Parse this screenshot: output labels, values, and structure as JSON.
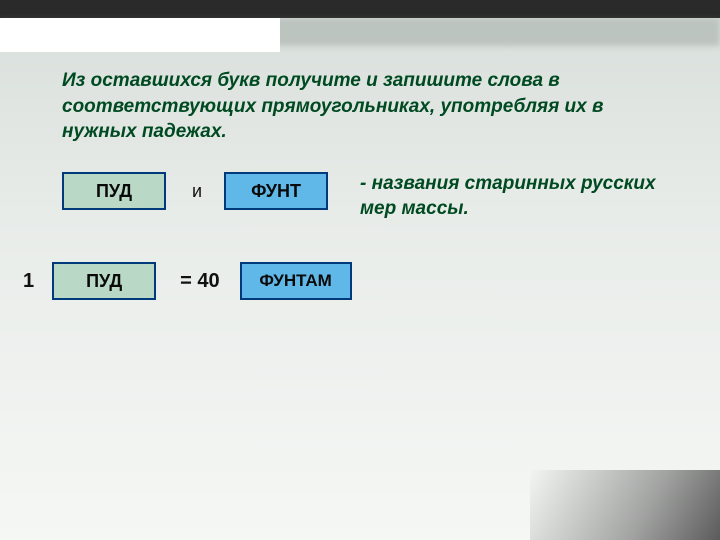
{
  "instruction": "Из оставшихся букв получите и запишите слова в соответствующих прямоугольниках, употребляя их в нужных падежах.",
  "row1": {
    "box1": "ПУД",
    "conj": "и",
    "box2": "ФУНТ"
  },
  "desc": "- названия старинных русских мер массы.",
  "row2": {
    "one": "1",
    "box1": "ПУД",
    "eq": "= 40",
    "box2": "ФУНТАМ"
  },
  "colors": {
    "text_dark_green": "#004a22",
    "box_border": "#003a7a",
    "box_green_fill": "#b9d9c6",
    "box_blue_fill": "#5fb8e8",
    "background_top": "#d8dedb",
    "background_bottom": "#f5f7f5"
  }
}
